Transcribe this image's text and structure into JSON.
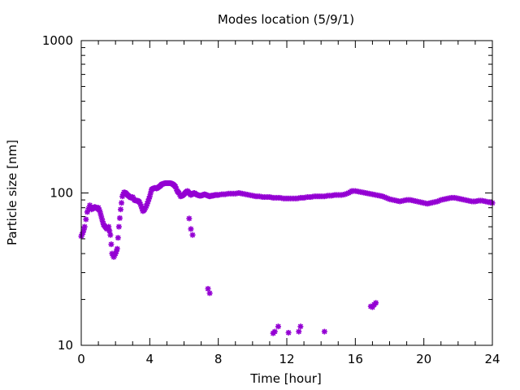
{
  "chart_data": {
    "type": "scatter",
    "title": "Modes location (5/9/1)",
    "xlabel": "Time [hour]",
    "ylabel": "Particle size [nm]",
    "xlim": [
      0,
      24
    ],
    "ylim": [
      10,
      1000
    ],
    "yscale": "log",
    "grid": false,
    "legend": "none",
    "x_ticks": [
      {
        "value": 0,
        "label": "0"
      },
      {
        "value": 4,
        "label": "4"
      },
      {
        "value": 8,
        "label": "8"
      },
      {
        "value": 12,
        "label": "12"
      },
      {
        "value": 16,
        "label": "16"
      },
      {
        "value": 20,
        "label": "20"
      },
      {
        "value": 24,
        "label": "24"
      }
    ],
    "y_ticks": [
      {
        "value": 10,
        "label": "10"
      },
      {
        "value": 100,
        "label": "100"
      },
      {
        "value": 1000,
        "label": "1000"
      }
    ],
    "marker_color": "#9400d3",
    "marker": "asterisk",
    "series": [
      {
        "main_mode_x": [
          0.0,
          0.1,
          0.2,
          0.35,
          0.5,
          0.6,
          0.7,
          0.8,
          0.9,
          1.0,
          1.1,
          1.2,
          1.3,
          1.4,
          1.5,
          1.6,
          1.7,
          1.8,
          1.9,
          2.0,
          2.1,
          2.2,
          2.3,
          2.4,
          2.5,
          2.6,
          2.7,
          2.8,
          2.9,
          3.0,
          3.1,
          3.2,
          3.3,
          3.4,
          3.5,
          3.6,
          3.7,
          3.8,
          3.9,
          4.0,
          4.1,
          4.2,
          4.3,
          4.4,
          4.5,
          4.6,
          4.7,
          4.8,
          4.9,
          5.0,
          5.1,
          5.2,
          5.3,
          5.4,
          5.5,
          5.6,
          5.7,
          5.8,
          5.9,
          6.0,
          6.1,
          6.2,
          6.3,
          6.4,
          6.5,
          6.6,
          6.7,
          6.8,
          6.9,
          7.0,
          7.1,
          7.2,
          7.3,
          7.4,
          7.5,
          7.6,
          7.7,
          7.8,
          7.9,
          8.0,
          8.2,
          8.4,
          8.6,
          8.8,
          9.0,
          9.2,
          9.4,
          9.6,
          9.8,
          10.0,
          10.2,
          10.4,
          10.6,
          10.8,
          11.0,
          11.2,
          11.4,
          11.6,
          11.8,
          12.0,
          12.2,
          12.4,
          12.6,
          12.8,
          13.0,
          13.2,
          13.4,
          13.6,
          13.8,
          14.0,
          14.2,
          14.4,
          14.6,
          14.8,
          15.0,
          15.2,
          15.4,
          15.6,
          15.8,
          16.0,
          16.2,
          16.4,
          16.6,
          16.8,
          17.0,
          17.2,
          17.4,
          17.6,
          17.8,
          18.0,
          18.2,
          18.4,
          18.6,
          18.8,
          19.0,
          19.2,
          19.4,
          19.6,
          19.8,
          20.0,
          20.2,
          20.4,
          20.6,
          20.8,
          21.0,
          21.2,
          21.4,
          21.6,
          21.8,
          22.0,
          22.2,
          22.4,
          22.6,
          22.8,
          23.0,
          23.2,
          23.4,
          23.6,
          23.8,
          24.0
        ],
        "main_mode_y": [
          52,
          55,
          60,
          75,
          83,
          78,
          80,
          81,
          79,
          80,
          75,
          68,
          62,
          60,
          58,
          60,
          53,
          40,
          38,
          40,
          43,
          60,
          78,
          95,
          101,
          100,
          97,
          95,
          93,
          94,
          90,
          89,
          89,
          87,
          82,
          76,
          78,
          82,
          88,
          95,
          105,
          107,
          108,
          107,
          109,
          111,
          114,
          115,
          116,
          116,
          116,
          116,
          115,
          113,
          110,
          103,
          100,
          95,
          96,
          98,
          101,
          103,
          100,
          97,
          99,
          100,
          98,
          97,
          96,
          96,
          97,
          98,
          97,
          96,
          95,
          96,
          96,
          97,
          97,
          97,
          98,
          98,
          99,
          99,
          99,
          100,
          99,
          98,
          97,
          96,
          95,
          95,
          94,
          94,
          94,
          93,
          93,
          93,
          92,
          92,
          92,
          92,
          92,
          93,
          93,
          94,
          94,
          95,
          95,
          95,
          95,
          96,
          96,
          97,
          97,
          97,
          98,
          100,
          103,
          103,
          102,
          101,
          100,
          99,
          98,
          97,
          96,
          95,
          93,
          91,
          90,
          89,
          88,
          89,
          90,
          90,
          89,
          88,
          87,
          86,
          85,
          86,
          87,
          88,
          90,
          91,
          92,
          93,
          93,
          92,
          91,
          90,
          89,
          88,
          88,
          89,
          89,
          88,
          87,
          86
        ]
      }
    ],
    "outliers": [
      {
        "x": 6.3,
        "y": 68
      },
      {
        "x": 6.4,
        "y": 58
      },
      {
        "x": 6.5,
        "y": 53
      },
      {
        "x": 7.4,
        "y": 23.5
      },
      {
        "x": 7.5,
        "y": 22
      },
      {
        "x": 11.2,
        "y": 12
      },
      {
        "x": 11.3,
        "y": 12.3
      },
      {
        "x": 11.5,
        "y": 13.3
      },
      {
        "x": 12.1,
        "y": 12.1
      },
      {
        "x": 12.7,
        "y": 12.3
      },
      {
        "x": 12.8,
        "y": 13.3
      },
      {
        "x": 14.2,
        "y": 12.3
      },
      {
        "x": 16.9,
        "y": 18
      },
      {
        "x": 17.0,
        "y": 17.8
      },
      {
        "x": 17.1,
        "y": 18.5
      },
      {
        "x": 17.2,
        "y": 19
      }
    ]
  }
}
